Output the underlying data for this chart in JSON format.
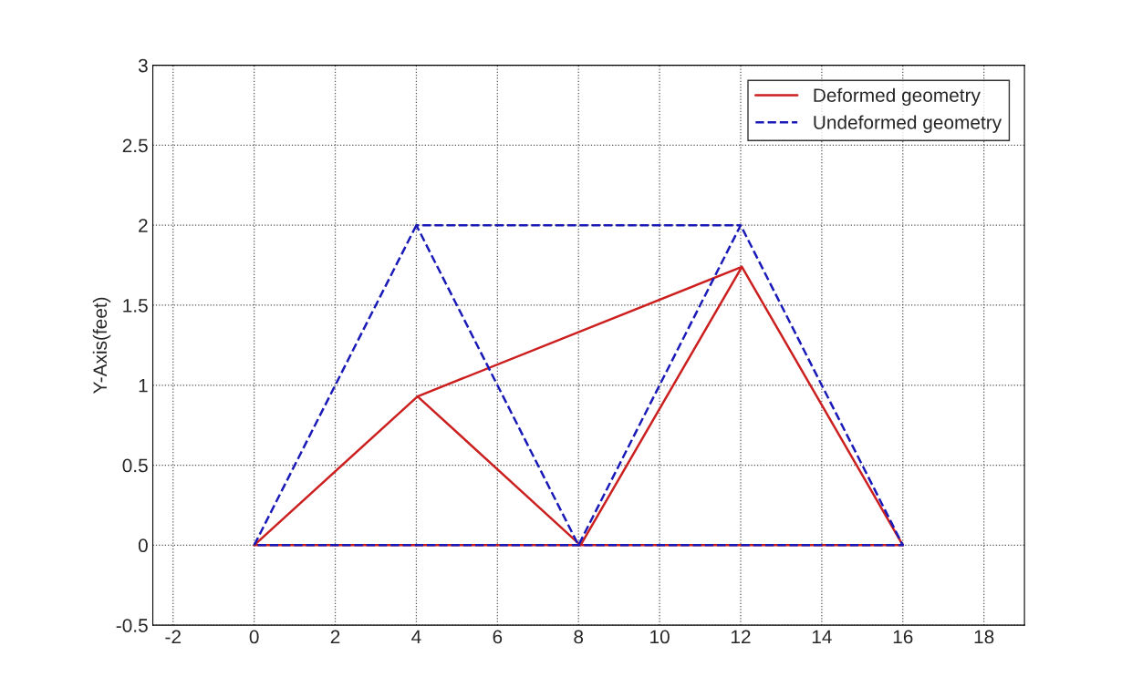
{
  "chart_data": {
    "type": "line",
    "ylabel": "Y-Axis(feet)",
    "series": [
      {
        "name": "Deformed geometry",
        "color": "#cc1f1f",
        "line_style": "solid",
        "x": [
          4.03,
          0,
          8.05,
          16,
          12.03,
          8.05,
          4.03,
          12.03
        ],
        "values": [
          0.93,
          0,
          0,
          0,
          1.74,
          0,
          0.93,
          1.74
        ]
      },
      {
        "name": "Undeformed geometry",
        "color": "#1a1ab8",
        "line_style": "dashed",
        "x": [
          4,
          0,
          8,
          16,
          12,
          8,
          4,
          12
        ],
        "values": [
          2,
          0,
          0,
          0,
          2,
          0,
          2,
          2
        ]
      }
    ],
    "xlim": [
      -2.5,
      19
    ],
    "xticks": [
      -2,
      0,
      2,
      4,
      6,
      8,
      10,
      12,
      14,
      16,
      18
    ],
    "ylim": [
      -0.5,
      3
    ],
    "yticks": [
      -0.5,
      0,
      0.5,
      1,
      1.5,
      2,
      2.5,
      3
    ],
    "grid": true,
    "legend": "top right",
    "marker": "none"
  }
}
